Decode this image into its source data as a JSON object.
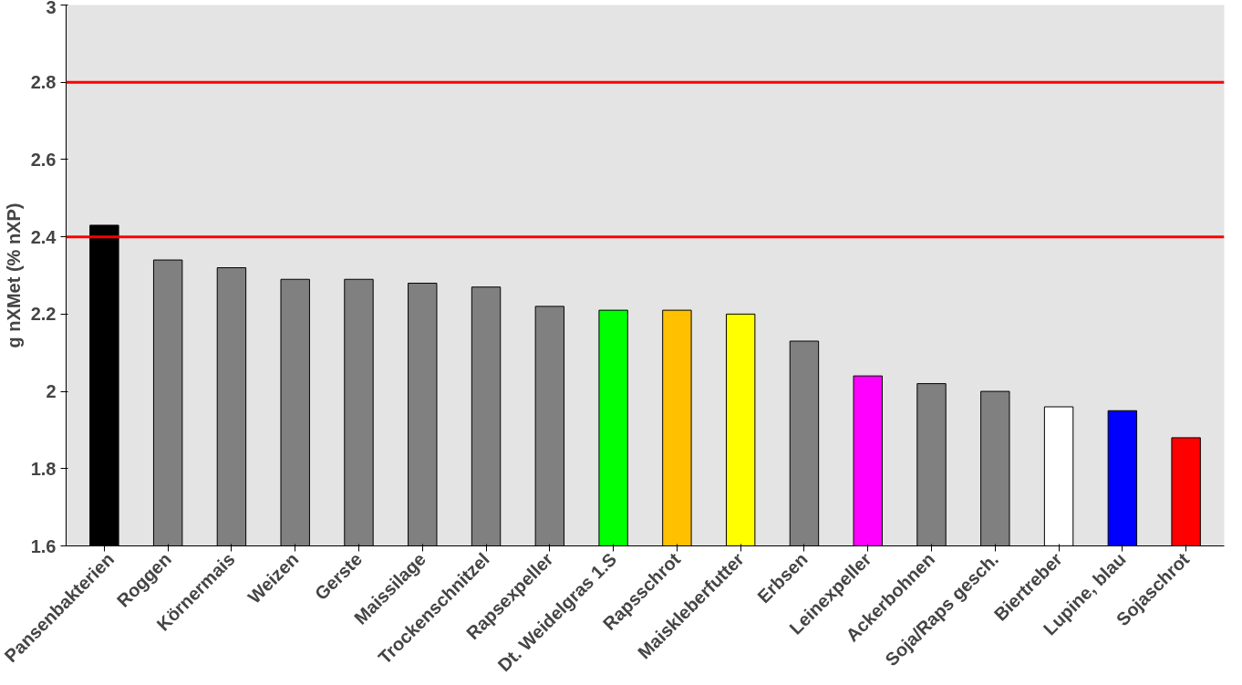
{
  "chart_data": {
    "type": "bar",
    "ylabel": "g nXMet (% nXP)",
    "categories": [
      "Pansenbakterien",
      "Roggen",
      "Körnermais",
      "Weizen",
      "Gerste",
      "Maissilage",
      "Trockenschnitzel",
      "Rapsexpeller",
      "Dt. Weidelgras 1.S",
      "Rapsschrot",
      "Maiskleberfutter",
      "Erbsen",
      "Leinexpeller",
      "Ackerbohnen",
      "Soja/Raps gesch.",
      "Biertreber",
      "Lupine, blau",
      "Sojaschrot"
    ],
    "values": [
      2.43,
      2.34,
      2.32,
      2.29,
      2.29,
      2.28,
      2.27,
      2.22,
      2.21,
      2.21,
      2.2,
      2.13,
      2.04,
      2.02,
      2.0,
      1.96,
      1.95,
      1.88
    ],
    "colors": [
      "#000000",
      "#808080",
      "#808080",
      "#808080",
      "#808080",
      "#808080",
      "#808080",
      "#808080",
      "#00ff00",
      "#ffc000",
      "#ffff00",
      "#808080",
      "#ff00ff",
      "#808080",
      "#808080",
      "#ffffff",
      "#0000ff",
      "#ff0000"
    ],
    "ylim": [
      1.6,
      3
    ],
    "yticks": [
      1.6,
      1.8,
      2,
      2.2,
      2.4,
      2.6,
      2.8,
      3
    ],
    "ref_lines": [
      {
        "axis": "y",
        "value": 2.8,
        "label": null,
        "color": "#ff0000"
      },
      {
        "axis": "y",
        "value": 2.4,
        "label": null,
        "color": "#ff0000"
      }
    ]
  }
}
